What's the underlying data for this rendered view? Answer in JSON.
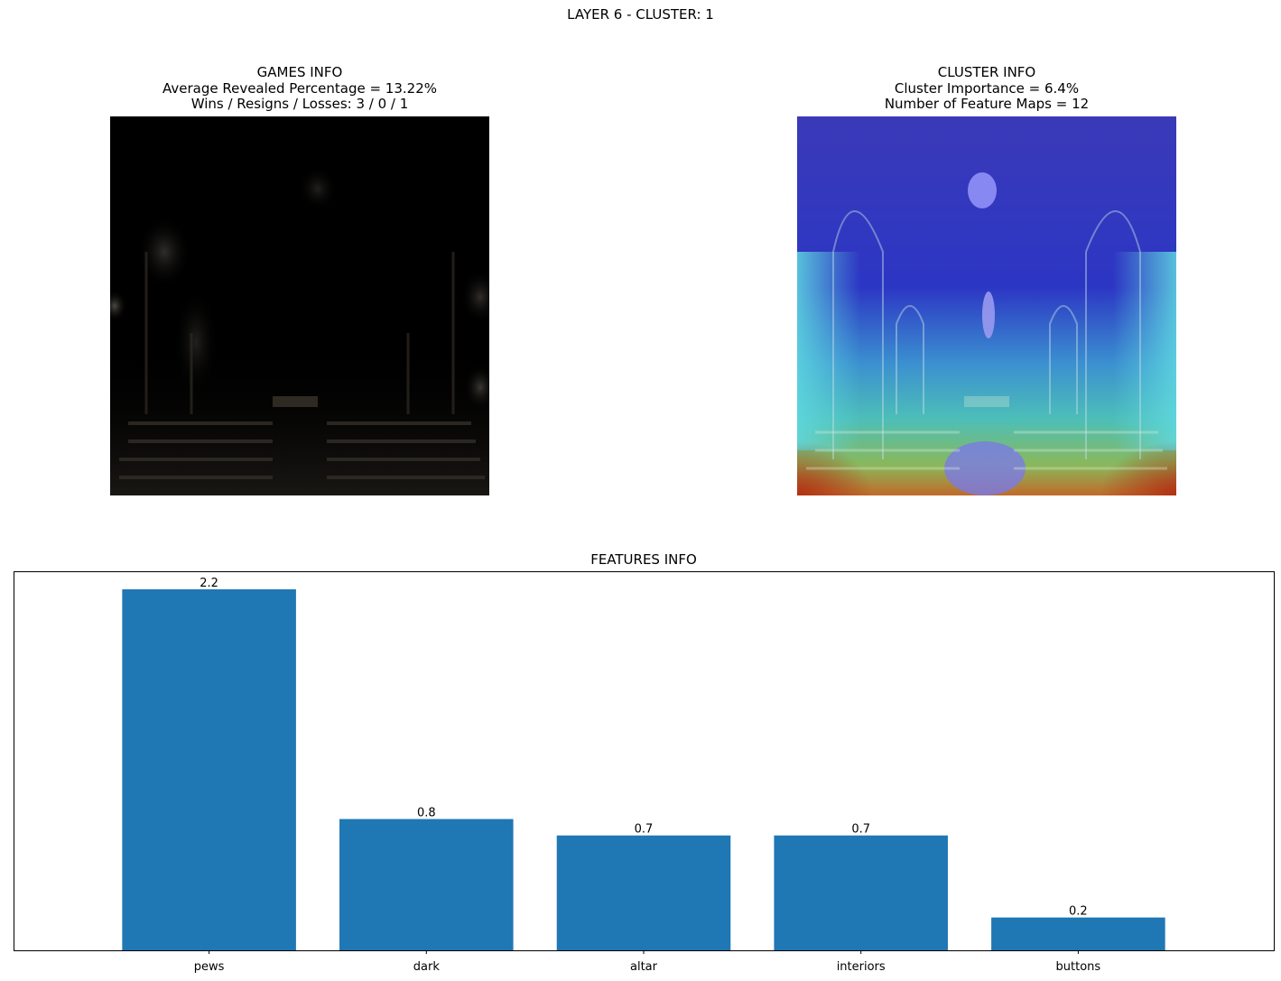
{
  "suptitle": "LAYER 6 - CLUSTER: 1",
  "games_info": {
    "title": "GAMES INFO",
    "line1": "Average Revealed Percentage = 13.22%",
    "line2": "Wins / Resigns / Losses: 3 / 0 / 1"
  },
  "cluster_info": {
    "title": "CLUSTER INFO",
    "line1": "Cluster Importance = 6.4%",
    "line2": "Number of Feature Maps = 12"
  },
  "chart_data": {
    "type": "bar",
    "title": "FEATURES INFO",
    "categories": [
      "pews",
      "dark",
      "altar",
      "interiors",
      "buttons"
    ],
    "values": [
      2.2,
      0.8,
      0.7,
      0.7,
      0.2
    ],
    "labels": [
      "2.2",
      "0.8",
      "0.7",
      "0.7",
      "0.2"
    ],
    "xlabel": "",
    "ylabel": "",
    "ylim": [
      0,
      2.31
    ],
    "bar_color": "#1f77b4"
  }
}
